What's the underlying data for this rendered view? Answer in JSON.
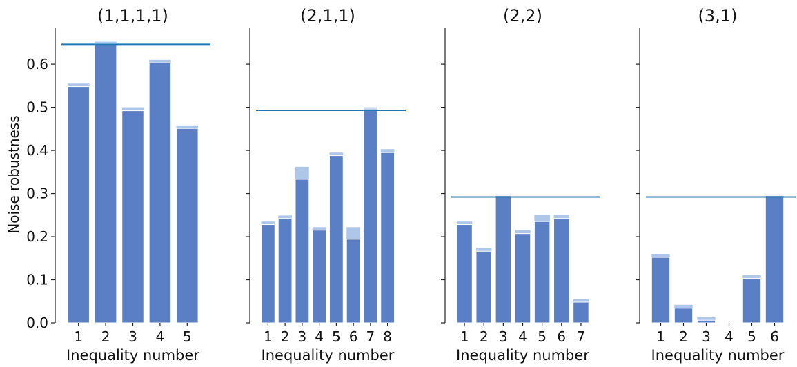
{
  "figure": {
    "ylabel": "Noise robustness",
    "colors": {
      "main": "#5b7fc4",
      "light": "#aec7e8",
      "line": "#1f77b4",
      "axis": "#222222"
    }
  },
  "chart_data": [
    {
      "type": "bar",
      "title": "(1,1,1,1)",
      "xlabel": "Inequality number",
      "ylabel": "Noise robustness",
      "ylim": [
        0,
        0.685
      ],
      "yticks": [
        0.0,
        0.1,
        0.2,
        0.3,
        0.4,
        0.5,
        0.6
      ],
      "categories": [
        "1",
        "2",
        "3",
        "4",
        "5"
      ],
      "series": [
        {
          "values": [
            0.548,
            0.648,
            0.492,
            0.603,
            0.451
          ]
        },
        {
          "values": [
            0.555,
            0.652,
            0.5,
            0.61,
            0.458
          ]
        }
      ],
      "hline": 0.646
    },
    {
      "type": "bar",
      "title": "(2,1,1)",
      "xlabel": "Inequality number",
      "ylim": [
        0,
        0.685
      ],
      "yticks": [
        0.0,
        0.1,
        0.2,
        0.3,
        0.4,
        0.5,
        0.6
      ],
      "categories": [
        "1",
        "2",
        "3",
        "4",
        "5",
        "6",
        "7",
        "8"
      ],
      "series": [
        {
          "values": [
            0.228,
            0.242,
            0.333,
            0.215,
            0.388,
            0.194,
            0.496,
            0.395
          ]
        },
        {
          "values": [
            0.235,
            0.249,
            0.362,
            0.222,
            0.395,
            0.222,
            0.5,
            0.403
          ]
        }
      ],
      "hline": 0.493
    },
    {
      "type": "bar",
      "title": "(2,2)",
      "xlabel": "Inequality number",
      "ylim": [
        0,
        0.685
      ],
      "yticks": [
        0.0,
        0.1,
        0.2,
        0.3,
        0.4,
        0.5,
        0.6
      ],
      "categories": [
        "1",
        "2",
        "3",
        "4",
        "5",
        "6",
        "7"
      ],
      "series": [
        {
          "values": [
            0.228,
            0.166,
            0.295,
            0.207,
            0.235,
            0.242,
            0.048
          ]
        },
        {
          "values": [
            0.235,
            0.174,
            0.298,
            0.215,
            0.25,
            0.25,
            0.055
          ]
        }
      ],
      "hline": 0.292
    },
    {
      "type": "bar",
      "title": "(3,1)",
      "xlabel": "Inequality number",
      "ylim": [
        0,
        0.685
      ],
      "yticks": [
        0.0,
        0.1,
        0.2,
        0.3,
        0.4,
        0.5,
        0.6
      ],
      "categories": [
        "1",
        "2",
        "3",
        "4",
        "5",
        "6"
      ],
      "series": [
        {
          "values": [
            0.152,
            0.034,
            0.006,
            0.0,
            0.103,
            0.295
          ]
        },
        {
          "values": [
            0.16,
            0.042,
            0.013,
            0.0,
            0.111,
            0.298
          ]
        }
      ],
      "hline": 0.292
    }
  ]
}
